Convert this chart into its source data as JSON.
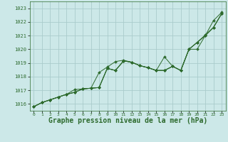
{
  "background_color": "#cce8e8",
  "grid_color": "#aacccc",
  "line_color": "#2d6a2d",
  "marker_color": "#2d6a2d",
  "xlabel": "Graphe pression niveau de la mer (hPa)",
  "xlabel_fontsize": 7,
  "ylim": [
    1015.5,
    1023.5
  ],
  "xlim": [
    -0.5,
    23.5
  ],
  "yticks": [
    1016,
    1017,
    1018,
    1019,
    1020,
    1021,
    1022,
    1023
  ],
  "xticks": [
    0,
    1,
    2,
    3,
    4,
    5,
    6,
    7,
    8,
    9,
    10,
    11,
    12,
    13,
    14,
    15,
    16,
    17,
    18,
    19,
    20,
    21,
    22,
    23
  ],
  "lines": [
    [
      1015.8,
      1016.1,
      1016.3,
      1016.5,
      1016.7,
      1016.85,
      1017.1,
      1017.15,
      1017.2,
      1018.6,
      1018.45,
      1019.15,
      1019.05,
      1018.8,
      1018.65,
      1018.45,
      1018.45,
      1018.75,
      1018.45,
      1020.0,
      1020.5,
      1021.0,
      1021.6,
      1022.6
    ],
    [
      1015.8,
      1016.1,
      1016.3,
      1016.5,
      1016.7,
      1016.85,
      1017.1,
      1017.15,
      1017.2,
      1018.6,
      1018.45,
      1019.15,
      1019.05,
      1018.8,
      1018.65,
      1018.45,
      1018.45,
      1018.75,
      1018.45,
      1020.0,
      1020.5,
      1021.0,
      1022.1,
      1022.7
    ],
    [
      1015.8,
      1016.1,
      1016.3,
      1016.5,
      1016.7,
      1016.85,
      1017.1,
      1017.15,
      1018.3,
      1018.7,
      1019.1,
      1019.2,
      1019.05,
      1018.8,
      1018.65,
      1018.45,
      1018.45,
      1018.75,
      1018.45,
      1020.0,
      1020.5,
      1021.05,
      1021.6,
      1022.6
    ],
    [
      1015.8,
      1016.1,
      1016.3,
      1016.5,
      1016.7,
      1017.05,
      1017.1,
      1017.15,
      1017.2,
      1018.6,
      1018.45,
      1019.15,
      1019.05,
      1018.8,
      1018.65,
      1018.45,
      1019.45,
      1018.75,
      1018.45,
      1020.0,
      1020.0,
      1021.0,
      1021.6,
      1022.6
    ]
  ]
}
